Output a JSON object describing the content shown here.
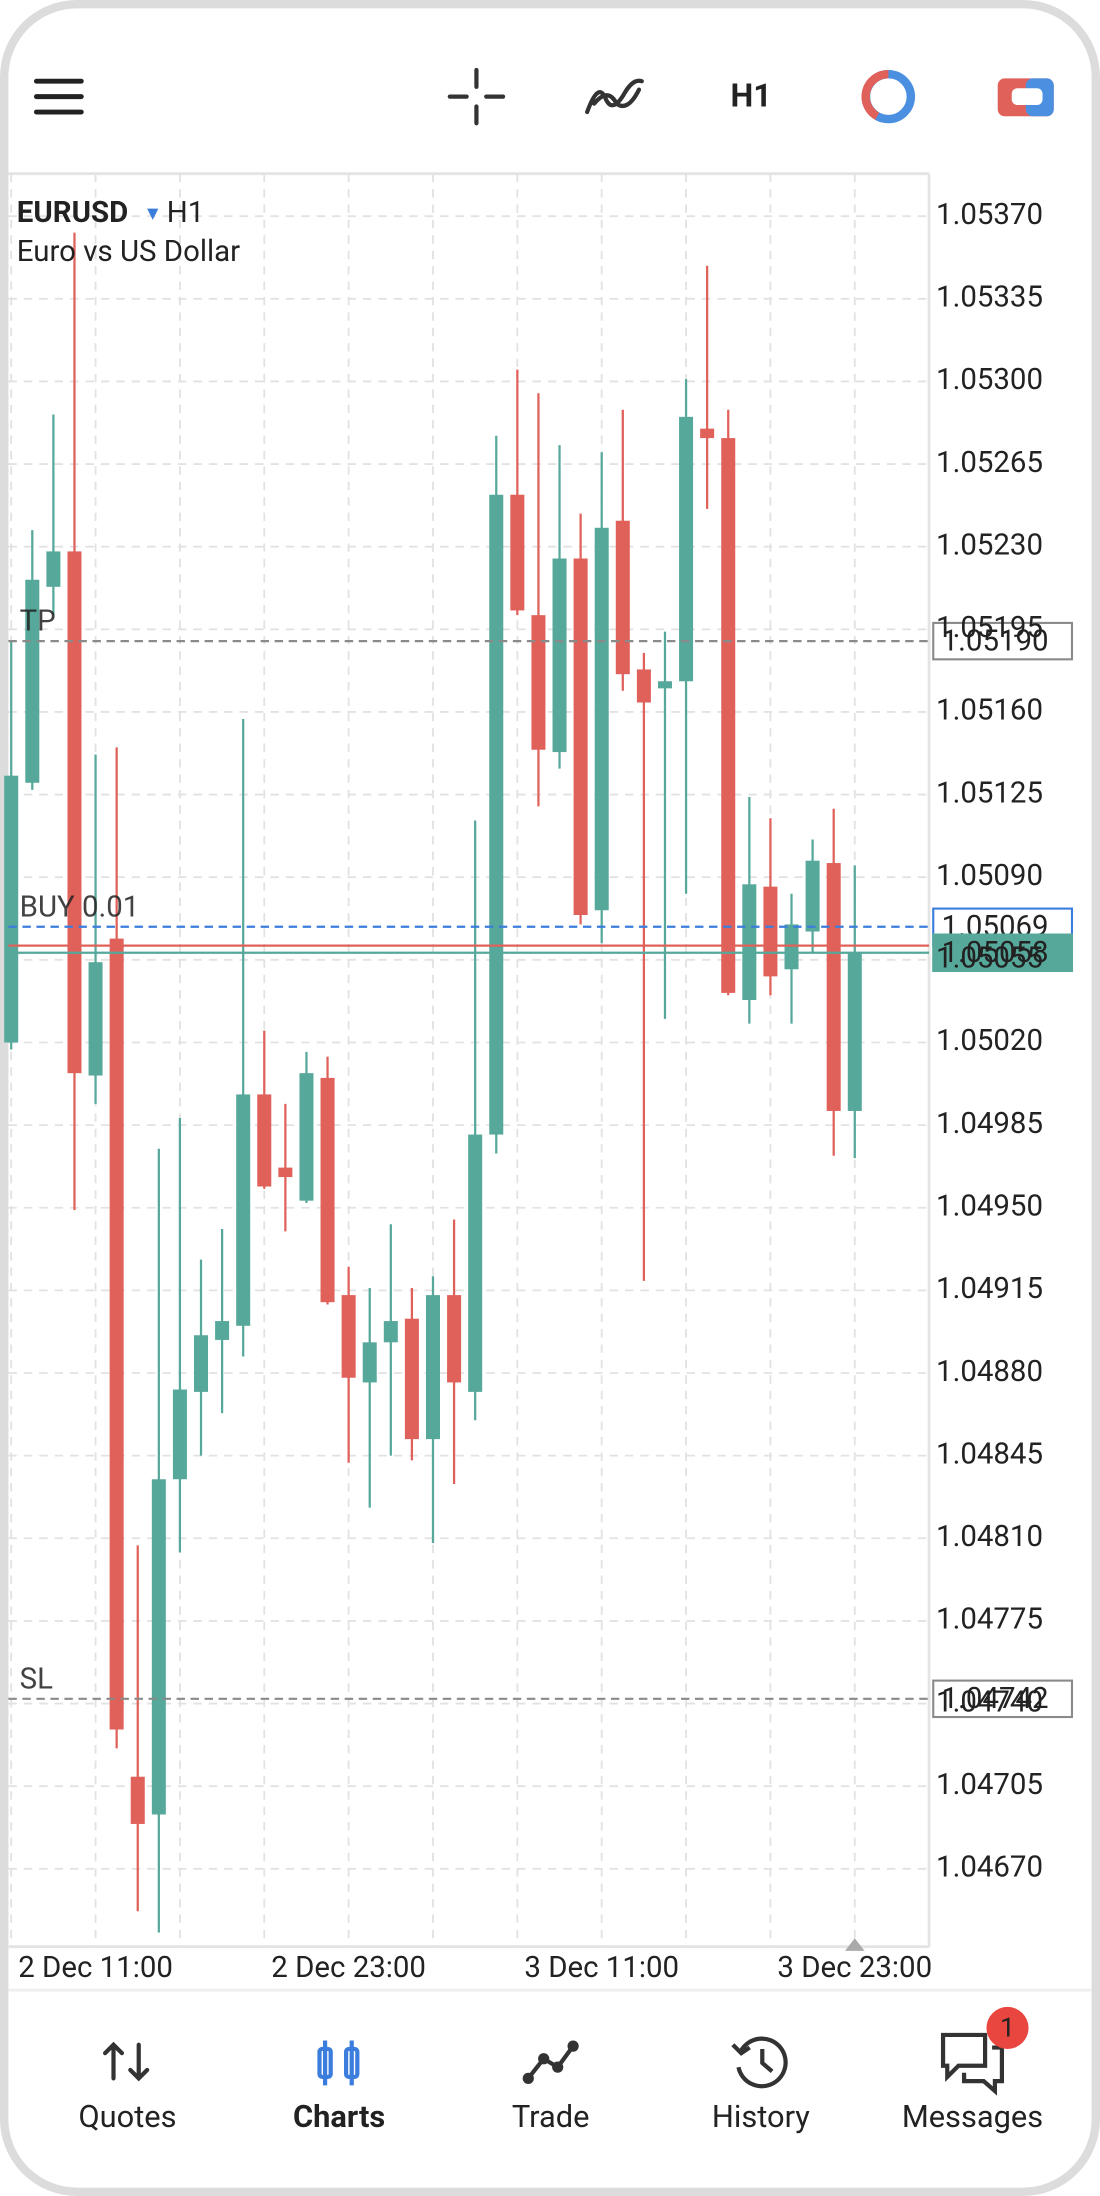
{
  "toolbar": {
    "timeframe": "H1"
  },
  "chart_data": {
    "type": "candlestick",
    "symbol": "EURUSD",
    "timeframe": "H1",
    "description": "Euro vs US Dollar",
    "categories": [
      null,
      null,
      null,
      null,
      "2 Dec 11:00",
      null,
      null,
      null,
      null,
      null,
      null,
      null,
      null,
      null,
      null,
      null,
      "2 Dec 23:00",
      null,
      null,
      null,
      null,
      null,
      null,
      null,
      null,
      null,
      null,
      null,
      "3 Dec 11:00",
      null,
      null,
      null,
      null,
      null,
      null,
      null,
      null,
      null,
      null,
      null,
      "3 Dec 23:00"
    ],
    "open": [
      1.0502,
      1.0513,
      1.05213,
      1.05228,
      1.05006,
      1.05064,
      1.04709,
      1.04693,
      1.04835,
      1.04872,
      1.04894,
      1.049,
      1.04998,
      1.04967,
      1.04953,
      1.05005,
      1.04913,
      1.04876,
      1.04893,
      1.04903,
      1.04852,
      1.04913,
      1.04872,
      1.04981,
      1.05252,
      1.05201,
      1.05143,
      1.05225,
      1.05076,
      1.05241,
      1.05178,
      1.0517,
      1.05173,
      1.0528,
      1.05276,
      1.05038,
      1.05086,
      1.05051,
      1.05067,
      1.05096,
      1.04991
    ],
    "high": [
      1.0519,
      1.05237,
      1.05286,
      1.05363,
      1.05142,
      1.05145,
      1.04807,
      1.04975,
      1.04988,
      1.04928,
      1.04941,
      1.05157,
      1.05025,
      1.04994,
      1.05016,
      1.05014,
      1.04925,
      1.04916,
      1.04943,
      1.04916,
      1.04921,
      1.04945,
      1.05114,
      1.05277,
      1.05305,
      1.05295,
      1.05273,
      1.05244,
      1.0527,
      1.05288,
      1.05185,
      1.05194,
      1.05301,
      1.05349,
      1.05288,
      1.05124,
      1.05115,
      1.05083,
      1.05106,
      1.05119,
      1.05095
    ],
    "low": [
      1.05017,
      1.05127,
      1.05201,
      1.04949,
      1.04994,
      1.04721,
      1.04652,
      1.04643,
      1.04804,
      1.04845,
      1.04863,
      1.04887,
      1.04958,
      1.0494,
      1.04952,
      1.04909,
      1.04842,
      1.04823,
      1.04845,
      1.04843,
      1.04808,
      1.04833,
      1.0486,
      1.04973,
      1.05201,
      1.0512,
      1.05136,
      1.0507,
      1.05062,
      1.05169,
      1.04919,
      1.0503,
      1.05083,
      1.05246,
      1.0504,
      1.05028,
      1.0504,
      1.05028,
      1.05058,
      1.04972,
      1.04971
    ],
    "close": [
      1.05133,
      1.05216,
      1.05228,
      1.05007,
      1.05054,
      1.04729,
      1.04689,
      1.04835,
      1.04873,
      1.04896,
      1.04902,
      1.04998,
      1.04959,
      1.04963,
      1.05007,
      1.0491,
      1.04878,
      1.04893,
      1.04902,
      1.04852,
      1.04913,
      1.04876,
      1.04981,
      1.05252,
      1.05203,
      1.05144,
      1.05225,
      1.05074,
      1.05238,
      1.05176,
      1.05164,
      1.05173,
      1.05285,
      1.05276,
      1.05041,
      1.05087,
      1.05048,
      1.0507,
      1.05097,
      1.04991,
      1.05058
    ],
    "up_color": "#56a89a",
    "down_color": "#e0605a",
    "ylim": [
      1.04637,
      1.05388
    ],
    "yticks": [
      {
        "value": 1.0537,
        "label": "1.05370"
      },
      1.05335,
      {
        "value": 1.053,
        "label": "1.05300"
      },
      1.05265,
      {
        "value": 1.0523,
        "label": "1.05230"
      },
      1.05195,
      {
        "value": 1.0516,
        "label": "1.05160"
      },
      1.05125,
      {
        "value": 1.0509,
        "label": "1.05090"
      },
      1.05055,
      {
        "value": 1.0502,
        "label": "1.05020"
      },
      1.04985,
      {
        "value": 1.0495,
        "label": "1.04950"
      },
      1.04915,
      {
        "value": 1.0488,
        "label": "1.04880"
      },
      1.04845,
      {
        "value": 1.0481,
        "label": "1.04810"
      },
      1.04775,
      {
        "value": 1.0474,
        "label": "1.04740"
      },
      1.04705,
      {
        "value": 1.0467,
        "label": "1.04670"
      }
    ],
    "grid": true,
    "levels": [
      {
        "name": "TP",
        "value": 1.0519,
        "label": "1.05190",
        "color": "#8a8a8a",
        "style": "dashed"
      },
      {
        "name": "BUY 0.01",
        "value": 1.05069,
        "label": "1.05069",
        "color": "#3b7ddd",
        "style": "dashed"
      },
      {
        "value": 1.05061,
        "color": "#e0605a",
        "style": "solid"
      },
      {
        "value": 1.05058,
        "label": "1.05058",
        "color": "#56a89a",
        "style": "solid",
        "filled": true
      },
      {
        "name": "SL",
        "value": 1.04742,
        "label": "1.04742",
        "color": "#8a8a8a",
        "style": "dashed"
      }
    ]
  },
  "tab_bar": {
    "tabs": [
      {
        "label": "Quotes"
      },
      {
        "label": "Charts"
      },
      {
        "label": "Trade"
      },
      {
        "label": "History"
      },
      {
        "label": "Messages"
      }
    ],
    "active": 1,
    "badge": 1
  }
}
